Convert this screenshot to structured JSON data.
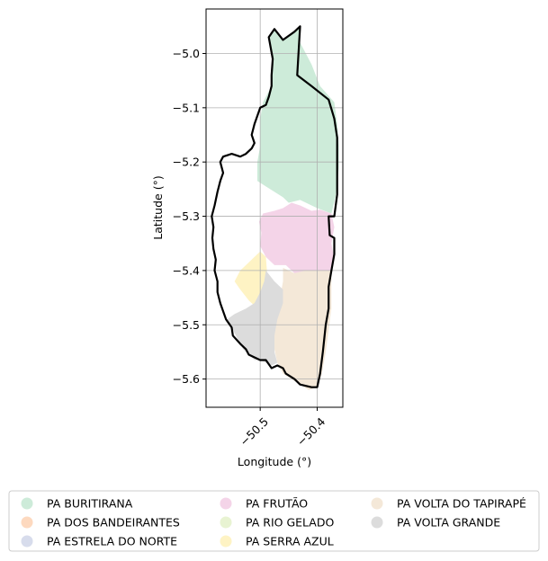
{
  "chart_data": {
    "type": "map",
    "title": "",
    "xlabel": "Longitude (°)",
    "ylabel": "Latitude (°)",
    "xlim": [
      -50.595,
      -50.355
    ],
    "ylim": [
      -5.652,
      -4.918
    ],
    "grid": true,
    "xticks": [
      {
        "value": -50.5,
        "label": "−50.5"
      },
      {
        "value": -50.4,
        "label": "−50.4"
      }
    ],
    "yticks": [
      {
        "value": -5.0,
        "label": "−5.0"
      },
      {
        "value": -5.1,
        "label": "−5.1"
      },
      {
        "value": -5.2,
        "label": "−5.2"
      },
      {
        "value": -5.3,
        "label": "−5.3"
      },
      {
        "value": -5.4,
        "label": "−5.4"
      },
      {
        "value": -5.5,
        "label": "−5.5"
      },
      {
        "value": -5.6,
        "label": "−5.6"
      }
    ],
    "legend_position": "bottom",
    "legend": [
      {
        "name": "PA BURITIRANA",
        "color": "#cdebd9"
      },
      {
        "name": "PA DOS BANDEIRANTES",
        "color": "#fdd9bf"
      },
      {
        "name": "PA ESTRELA DO NORTE",
        "color": "#d7dcec"
      },
      {
        "name": "PA FRUTÃO",
        "color": "#f4d4e8"
      },
      {
        "name": "PA RIO GELADO",
        "color": "#e8f3d2"
      },
      {
        "name": "PA SERRA AZUL",
        "color": "#fef3c4"
      },
      {
        "name": "PA VOLTA DO TAPIRAPÉ",
        "color": "#f4e8d8"
      },
      {
        "name": "PA VOLTA GRANDE",
        "color": "#dcdcdc"
      }
    ],
    "regions": [
      {
        "name": "PA BURITIRANA",
        "color": "#cdebd9",
        "points": [
          [
            -50.485,
            -4.97
          ],
          [
            -50.475,
            -4.955
          ],
          [
            -50.46,
            -4.975
          ],
          [
            -50.44,
            -4.96
          ],
          [
            -50.43,
            -4.95
          ],
          [
            -50.43,
            -4.98
          ],
          [
            -50.41,
            -5.02
          ],
          [
            -50.395,
            -5.06
          ],
          [
            -50.37,
            -5.09
          ],
          [
            -50.365,
            -5.13
          ],
          [
            -50.362,
            -5.17
          ],
          [
            -50.362,
            -5.21
          ],
          [
            -50.368,
            -5.265
          ],
          [
            -50.375,
            -5.295
          ],
          [
            -50.4,
            -5.285
          ],
          [
            -50.43,
            -5.27
          ],
          [
            -50.45,
            -5.275
          ],
          [
            -50.46,
            -5.265
          ],
          [
            -50.475,
            -5.255
          ],
          [
            -50.49,
            -5.245
          ],
          [
            -50.505,
            -5.235
          ],
          [
            -50.505,
            -5.2
          ],
          [
            -50.5,
            -5.17
          ],
          [
            -50.5,
            -5.12
          ],
          [
            -50.495,
            -5.09
          ],
          [
            -50.48,
            -5.06
          ],
          [
            -50.478,
            -5.01
          ]
        ]
      },
      {
        "name": "PA FRUTÃO",
        "color": "#f4d4e8",
        "points": [
          [
            -50.495,
            -5.295
          ],
          [
            -50.475,
            -5.29
          ],
          [
            -50.46,
            -5.285
          ],
          [
            -50.445,
            -5.275
          ],
          [
            -50.43,
            -5.28
          ],
          [
            -50.41,
            -5.29
          ],
          [
            -50.395,
            -5.288
          ],
          [
            -50.375,
            -5.295
          ],
          [
            -50.37,
            -5.32
          ],
          [
            -50.375,
            -5.35
          ],
          [
            -50.37,
            -5.38
          ],
          [
            -50.375,
            -5.4
          ],
          [
            -50.4,
            -5.4
          ],
          [
            -50.42,
            -5.4
          ],
          [
            -50.43,
            -5.41
          ],
          [
            -50.44,
            -5.405
          ],
          [
            -50.455,
            -5.39
          ],
          [
            -50.475,
            -5.39
          ],
          [
            -50.49,
            -5.375
          ],
          [
            -50.5,
            -5.355
          ],
          [
            -50.498,
            -5.33
          ],
          [
            -50.502,
            -5.31
          ]
        ]
      },
      {
        "name": "PA SERRA AZUL",
        "color": "#fef3c4",
        "points": [
          [
            -50.5,
            -5.365
          ],
          [
            -50.49,
            -5.375
          ],
          [
            -50.488,
            -5.405
          ],
          [
            -50.49,
            -5.43
          ],
          [
            -50.5,
            -5.455
          ],
          [
            -50.51,
            -5.465
          ],
          [
            -50.52,
            -5.455
          ],
          [
            -50.535,
            -5.435
          ],
          [
            -50.545,
            -5.42
          ],
          [
            -50.535,
            -5.4
          ],
          [
            -50.52,
            -5.385
          ],
          [
            -50.51,
            -5.375
          ]
        ]
      },
      {
        "name": "PA VOLTA DO TAPIRAPÉ",
        "color": "#f4e8d8",
        "points": [
          [
            -50.46,
            -5.395
          ],
          [
            -50.44,
            -5.405
          ],
          [
            -50.42,
            -5.4
          ],
          [
            -50.4,
            -5.4
          ],
          [
            -50.375,
            -5.4
          ],
          [
            -50.375,
            -5.43
          ],
          [
            -50.375,
            -5.47
          ],
          [
            -50.38,
            -5.51
          ],
          [
            -50.385,
            -5.55
          ],
          [
            -50.392,
            -5.59
          ],
          [
            -50.4,
            -5.615
          ],
          [
            -50.415,
            -5.62
          ],
          [
            -50.43,
            -5.61
          ],
          [
            -50.445,
            -5.6
          ],
          [
            -50.46,
            -5.59
          ],
          [
            -50.47,
            -5.57
          ],
          [
            -50.475,
            -5.545
          ],
          [
            -50.475,
            -5.51
          ],
          [
            -50.47,
            -5.48
          ],
          [
            -50.465,
            -5.45
          ],
          [
            -50.46,
            -5.42
          ]
        ]
      },
      {
        "name": "PA VOLTA GRANDE",
        "color": "#dcdcdc",
        "points": [
          [
            -50.49,
            -5.4
          ],
          [
            -50.475,
            -5.42
          ],
          [
            -50.46,
            -5.435
          ],
          [
            -50.46,
            -5.46
          ],
          [
            -50.47,
            -5.49
          ],
          [
            -50.475,
            -5.52
          ],
          [
            -50.475,
            -5.55
          ],
          [
            -50.47,
            -5.57
          ],
          [
            -50.48,
            -5.575
          ],
          [
            -50.5,
            -5.565
          ],
          [
            -50.51,
            -5.565
          ],
          [
            -50.52,
            -5.555
          ],
          [
            -50.53,
            -5.545
          ],
          [
            -50.54,
            -5.525
          ],
          [
            -50.55,
            -5.505
          ],
          [
            -50.558,
            -5.49
          ],
          [
            -50.545,
            -5.48
          ],
          [
            -50.525,
            -5.47
          ],
          [
            -50.51,
            -5.46
          ],
          [
            -50.5,
            -5.44
          ],
          [
            -50.493,
            -5.42
          ]
        ]
      }
    ],
    "boundary": [
      [
        -50.485,
        -4.97
      ],
      [
        -50.475,
        -4.955
      ],
      [
        -50.46,
        -4.975
      ],
      [
        -50.44,
        -4.96
      ],
      [
        -50.43,
        -4.95
      ],
      [
        -50.435,
        -5.04
      ],
      [
        -50.41,
        -5.06
      ],
      [
        -50.38,
        -5.085
      ],
      [
        -50.37,
        -5.12
      ],
      [
        -50.365,
        -5.155
      ],
      [
        -50.365,
        -5.2
      ],
      [
        -50.365,
        -5.26
      ],
      [
        -50.37,
        -5.3
      ],
      [
        -50.38,
        -5.3
      ],
      [
        -50.378,
        -5.335
      ],
      [
        -50.37,
        -5.34
      ],
      [
        -50.37,
        -5.37
      ],
      [
        -50.375,
        -5.4
      ],
      [
        -50.38,
        -5.43
      ],
      [
        -50.38,
        -5.47
      ],
      [
        -50.385,
        -5.5
      ],
      [
        -50.39,
        -5.55
      ],
      [
        -50.395,
        -5.59
      ],
      [
        -50.4,
        -5.615
      ],
      [
        -50.41,
        -5.615
      ],
      [
        -50.43,
        -5.61
      ],
      [
        -50.44,
        -5.6
      ],
      [
        -50.455,
        -5.59
      ],
      [
        -50.46,
        -5.58
      ],
      [
        -50.47,
        -5.575
      ],
      [
        -50.48,
        -5.58
      ],
      [
        -50.49,
        -5.565
      ],
      [
        -50.5,
        -5.565
      ],
      [
        -50.51,
        -5.56
      ],
      [
        -50.52,
        -5.555
      ],
      [
        -50.525,
        -5.545
      ],
      [
        -50.535,
        -5.535
      ],
      [
        -50.548,
        -5.52
      ],
      [
        -50.55,
        -5.505
      ],
      [
        -50.56,
        -5.49
      ],
      [
        -50.565,
        -5.475
      ],
      [
        -50.57,
        -5.46
      ],
      [
        -50.575,
        -5.44
      ],
      [
        -50.575,
        -5.42
      ],
      [
        -50.58,
        -5.4
      ],
      [
        -50.578,
        -5.38
      ],
      [
        -50.582,
        -5.36
      ],
      [
        -50.584,
        -5.34
      ],
      [
        -50.582,
        -5.32
      ],
      [
        -50.585,
        -5.3
      ],
      [
        -50.58,
        -5.28
      ],
      [
        -50.575,
        -5.255
      ],
      [
        -50.57,
        -5.235
      ],
      [
        -50.565,
        -5.22
      ],
      [
        -50.57,
        -5.2
      ],
      [
        -50.565,
        -5.19
      ],
      [
        -50.55,
        -5.185
      ],
      [
        -50.535,
        -5.19
      ],
      [
        -50.525,
        -5.185
      ],
      [
        -50.515,
        -5.175
      ],
      [
        -50.51,
        -5.165
      ],
      [
        -50.515,
        -5.15
      ],
      [
        -50.51,
        -5.13
      ],
      [
        -50.505,
        -5.115
      ],
      [
        -50.5,
        -5.1
      ],
      [
        -50.49,
        -5.095
      ],
      [
        -50.485,
        -5.08
      ],
      [
        -50.48,
        -5.06
      ],
      [
        -50.48,
        -5.04
      ],
      [
        -50.478,
        -5.01
      ]
    ]
  }
}
